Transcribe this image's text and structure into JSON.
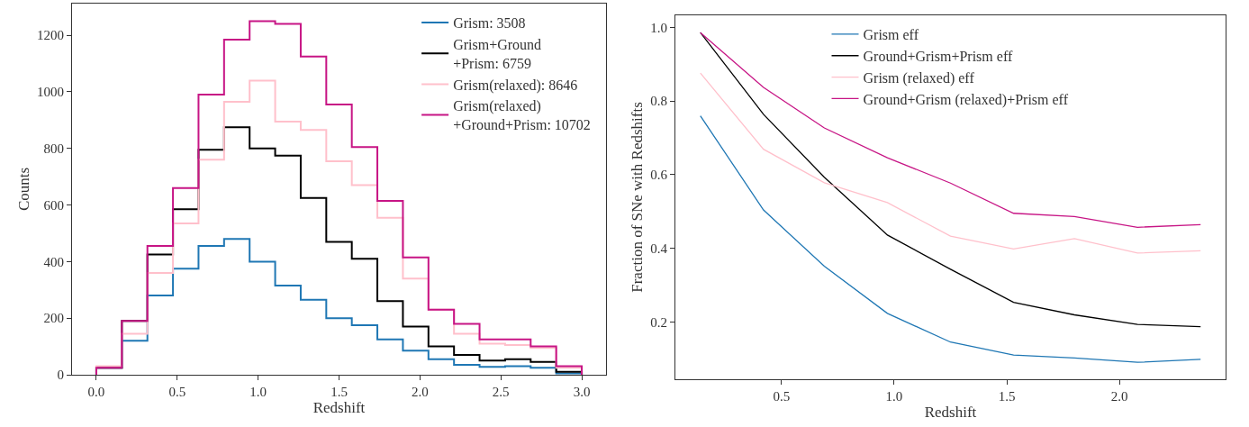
{
  "chart_data": [
    {
      "type": "histogram",
      "xlabel": "Redshift",
      "ylabel": "Counts",
      "bins": [
        0,
        0.1579,
        0.3158,
        0.4737,
        0.6316,
        0.7895,
        0.9474,
        1.1053,
        1.2632,
        1.4211,
        1.5789,
        1.7368,
        1.8947,
        2.0526,
        2.2105,
        2.3684,
        2.5263,
        2.6842,
        2.8421,
        3.0
      ],
      "series": [
        {
          "name": "Grism: 3508",
          "color": "#1f77b4",
          "values": [
            25,
            120,
            280,
            375,
            455,
            480,
            400,
            315,
            265,
            200,
            175,
            125,
            85,
            55,
            35,
            28,
            30,
            25,
            5
          ]
        },
        {
          "name": "Grism+Ground\n+Prism: 6759",
          "color": "#000000",
          "values": [
            25,
            190,
            425,
            585,
            795,
            875,
            800,
            775,
            625,
            470,
            410,
            260,
            170,
            100,
            70,
            50,
            55,
            45,
            10
          ]
        },
        {
          "name": "Grism(relaxed): 8646",
          "color": "#ffc0cb",
          "values": [
            30,
            145,
            360,
            535,
            760,
            965,
            1040,
            895,
            865,
            755,
            670,
            555,
            340,
            230,
            145,
            110,
            105,
            95,
            25
          ]
        },
        {
          "name": "Grism(relaxed)\n+Ground+Prism: 10702",
          "color": "#c71585",
          "values": [
            25,
            190,
            455,
            660,
            990,
            1185,
            1250,
            1240,
            1125,
            955,
            805,
            615,
            415,
            230,
            180,
            125,
            125,
            100,
            30
          ]
        }
      ],
      "xlim": [
        -0.15,
        3.15
      ],
      "xticks": [
        {
          "value": 0,
          "label": "0.0"
        },
        0.5,
        {
          "value": 1,
          "label": "1.0"
        },
        1.5,
        {
          "value": 2,
          "label": "2.0"
        },
        2.5,
        {
          "value": 3,
          "label": "3.0"
        }
      ],
      "ylim": [
        0,
        1312
      ],
      "yticks": [
        0,
        200,
        400,
        600,
        800,
        1000,
        1200
      ],
      "grid": false,
      "legend": "top right"
    },
    {
      "type": "line",
      "xlabel": "Redshift",
      "ylabel": "Fraction of SNe with Redshifts",
      "marker": "none",
      "line_style": "solid",
      "x": [
        0.14,
        0.42,
        0.69,
        0.97,
        1.25,
        1.53,
        1.8,
        2.08,
        2.36
      ],
      "series": [
        {
          "name": "Grism eff",
          "color": "#1f77b4",
          "values": [
            0.76,
            0.504,
            0.351,
            0.223,
            0.145,
            0.11,
            0.102,
            0.09,
            0.098
          ]
        },
        {
          "name": "Ground+Grism+Prism eff",
          "color": "#000000",
          "values": [
            0.986,
            0.764,
            0.593,
            0.436,
            0.343,
            0.253,
            0.219,
            0.193,
            0.187
          ]
        },
        {
          "name": "Grism (relaxed) eff",
          "color": "#ffc0cb",
          "values": [
            0.876,
            0.669,
            0.578,
            0.524,
            0.433,
            0.398,
            0.426,
            0.387,
            0.393
          ]
        },
        {
          "name": "Ground+Grism (relaxed)+Prism eff",
          "color": "#c71585",
          "values": [
            0.986,
            0.837,
            0.727,
            0.646,
            0.577,
            0.495,
            0.486,
            0.457,
            0.464
          ]
        }
      ],
      "xlim": [
        0.029,
        2.471
      ],
      "xticks": [
        0.5,
        {
          "value": 1,
          "label": "1.0"
        },
        1.5,
        {
          "value": 2,
          "label": "2.0"
        }
      ],
      "ylim": [
        0.044,
        1.033
      ],
      "yticks": [
        0.2,
        0.4,
        0.6,
        0.8,
        {
          "value": 1,
          "label": "1.0"
        }
      ],
      "grid": false,
      "legend": "top"
    }
  ]
}
